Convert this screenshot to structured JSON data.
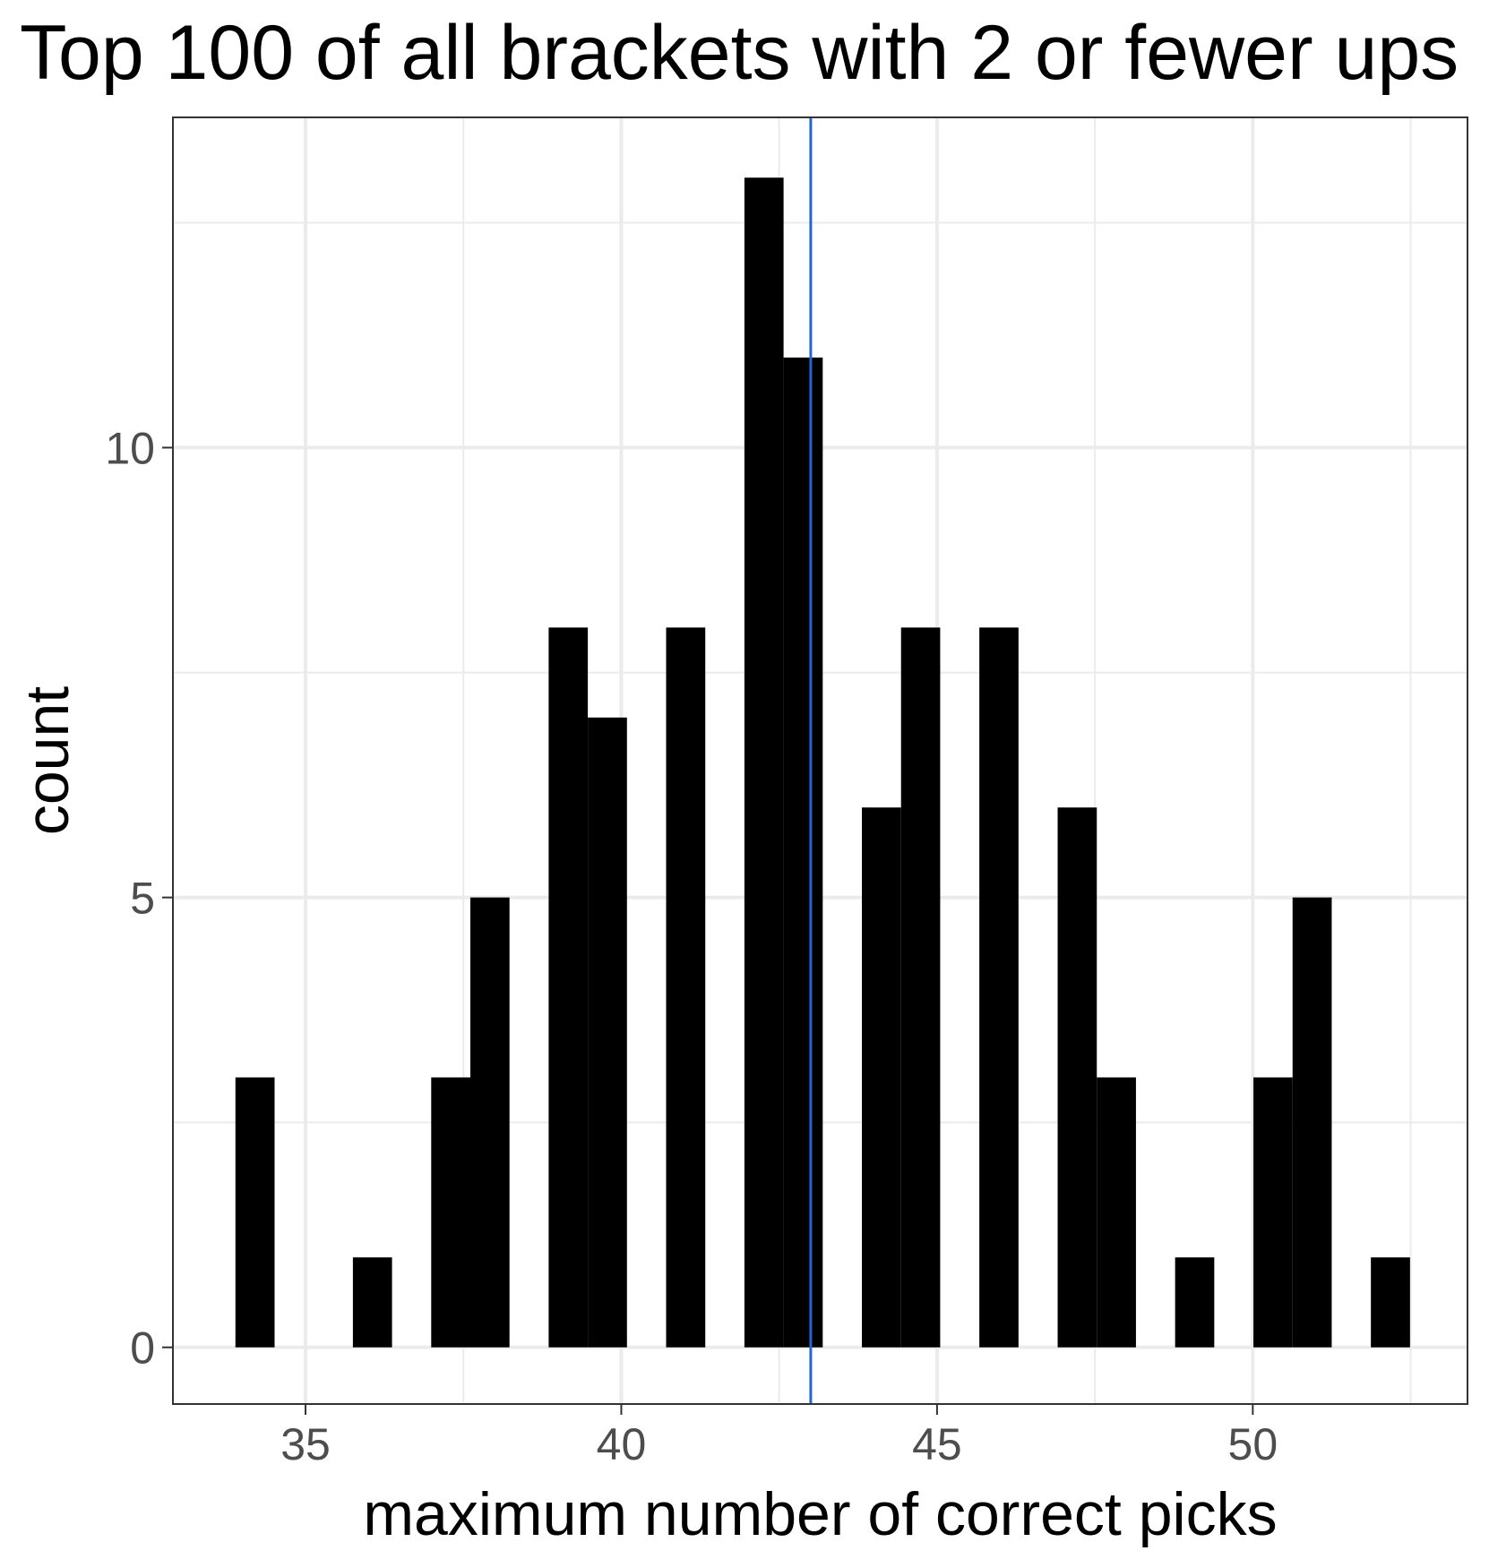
{
  "chart_data": {
    "type": "bar",
    "title": "Top 100 of all brackets with 2 or fewer ups",
    "xlabel": "maximum number of correct picks",
    "ylabel": "count",
    "xlim": [
      32.9,
      53.4
    ],
    "ylim": [
      -0.63,
      13.67
    ],
    "x_ticks": [
      35,
      40,
      45,
      50
    ],
    "x_tick_labels": [
      "35",
      "40",
      "45",
      "50"
    ],
    "x_minor_ticks": [
      37.5,
      42.5,
      47.5,
      52.5
    ],
    "y_ticks": [
      0,
      5,
      10
    ],
    "y_tick_labels": [
      "0",
      "5",
      "10"
    ],
    "y_minor_ticks": [
      2.5,
      7.5,
      12.5
    ],
    "bin_width": 0.62,
    "bins": [
      {
        "center": 34.2,
        "count": 3
      },
      {
        "center": 36.06,
        "count": 1
      },
      {
        "center": 37.3,
        "count": 3
      },
      {
        "center": 37.92,
        "count": 5
      },
      {
        "center": 39.16,
        "count": 8
      },
      {
        "center": 39.78,
        "count": 7
      },
      {
        "center": 41.02,
        "count": 8
      },
      {
        "center": 42.26,
        "count": 13
      },
      {
        "center": 42.88,
        "count": 11
      },
      {
        "center": 44.12,
        "count": 6
      },
      {
        "center": 44.74,
        "count": 8
      },
      {
        "center": 45.98,
        "count": 8
      },
      {
        "center": 47.22,
        "count": 6
      },
      {
        "center": 47.84,
        "count": 3
      },
      {
        "center": 49.08,
        "count": 1
      },
      {
        "center": 50.32,
        "count": 3
      },
      {
        "center": 50.94,
        "count": 5
      },
      {
        "center": 52.18,
        "count": 1
      }
    ],
    "reference_line": {
      "x": 43.0,
      "color": "#2166d6"
    },
    "grid": true,
    "legend": "none"
  }
}
